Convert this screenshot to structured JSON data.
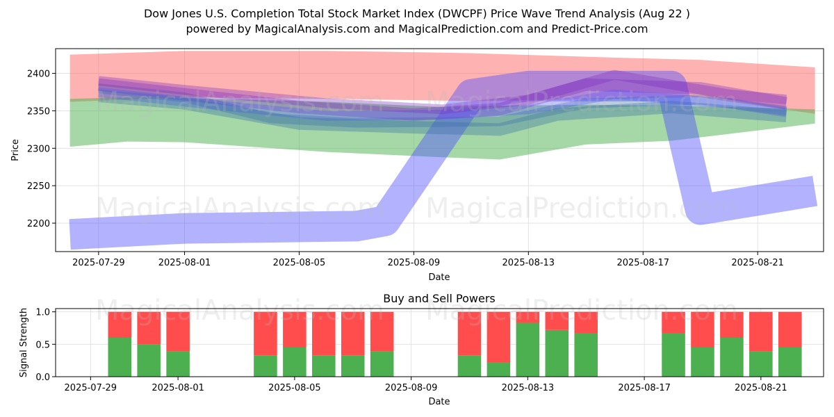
{
  "header": {
    "title": "Dow Jones U.S. Completion Total Stock Market Index (DWCPF) Price Wave Trend Analysis (Aug 22 )",
    "subtitle": "powered by MagicalAnalysis.com and MagicalPrediction.com and Predict-Price.com"
  },
  "watermarks": [
    "MagicalAnalysis.com",
    "MagicalPrediction.com"
  ],
  "colors": {
    "upper_band": "#ff6666",
    "lower_band": "#4caf50",
    "blue_wave": "#5555ff",
    "purple_wave": "#7b2fbf",
    "steel_wave": "#3a6ea5",
    "buy": "#4caf50",
    "sell": "#ff4c4c"
  },
  "chart_data": [
    {
      "type": "area",
      "xlabel": "Date",
      "ylabel": "Price",
      "ylim": [
        2162,
        2433
      ],
      "xlim": [
        "2025-07-27",
        "2025-08-23"
      ],
      "x_ticks": [
        "2025-07-29",
        "2025-08-01",
        "2025-08-05",
        "2025-08-09",
        "2025-08-13",
        "2025-08-17",
        "2025-08-21"
      ],
      "y_ticks": [
        2200,
        2250,
        2300,
        2350,
        2400
      ],
      "grid": true,
      "bands": [
        {
          "color": "#ff6666",
          "x": [
            "2025-07-28",
            "2025-08-01",
            "2025-08-06",
            "2025-08-11",
            "2025-08-16",
            "2025-08-19",
            "2025-08-23"
          ],
          "upper": [
            2425,
            2430,
            2430,
            2427,
            2421,
            2418,
            2408
          ],
          "lower": [
            2362,
            2368,
            2366,
            2363,
            2366,
            2368,
            2346
          ]
        },
        {
          "color": "#4caf50",
          "x": [
            "2025-07-28",
            "2025-07-30",
            "2025-08-01",
            "2025-08-06",
            "2025-08-10",
            "2025-08-12",
            "2025-08-15",
            "2025-08-18",
            "2025-08-23"
          ],
          "upper": [
            2366,
            2368,
            2367,
            2362,
            2355,
            2357,
            2358,
            2357,
            2352
          ],
          "lower": [
            2302,
            2309,
            2308,
            2295,
            2288,
            2285,
            2305,
            2310,
            2333
          ]
        }
      ],
      "waves": [
        {
          "color": "#5555ff",
          "x": [
            "2025-07-28",
            "2025-08-01",
            "2025-08-07",
            "2025-08-08",
            "2025-08-11",
            "2025-08-13",
            "2025-08-18",
            "2025-08-19",
            "2025-08-23"
          ],
          "y": [
            2185,
            2193,
            2196,
            2203,
            2372,
            2383,
            2383,
            2218,
            2243
          ]
        },
        {
          "color": "#3a6ea5",
          "x": [
            "2025-07-29",
            "2025-08-01",
            "2025-08-04",
            "2025-08-07",
            "2025-08-10",
            "2025-08-12",
            "2025-08-15",
            "2025-08-19",
            "2025-08-22"
          ],
          "y": [
            2380,
            2368,
            2340,
            2334,
            2335,
            2336,
            2360,
            2365,
            2350
          ]
        },
        {
          "color": "#7b2fbf",
          "x": [
            "2025-07-29",
            "2025-08-01",
            "2025-08-05",
            "2025-08-09",
            "2025-08-12",
            "2025-08-15",
            "2025-08-19",
            "2025-08-22"
          ],
          "y": [
            2385,
            2372,
            2355,
            2345,
            2352,
            2385,
            2380,
            2360
          ]
        },
        {
          "color": "#5555ff",
          "x": [
            "2025-07-29",
            "2025-08-02",
            "2025-08-06",
            "2025-08-10",
            "2025-08-13",
            "2025-08-16",
            "2025-08-20",
            "2025-08-22"
          ],
          "y": [
            2375,
            2358,
            2343,
            2345,
            2352,
            2372,
            2360,
            2348
          ]
        },
        {
          "color": "#3a6ea5",
          "x": [
            "2025-07-29",
            "2025-08-01",
            "2025-08-05",
            "2025-08-09",
            "2025-08-12",
            "2025-08-14",
            "2025-08-18",
            "2025-08-22"
          ],
          "y": [
            2370,
            2360,
            2333,
            2328,
            2325,
            2345,
            2355,
            2343
          ]
        },
        {
          "color": "#7b2fbf",
          "x": [
            "2025-07-29",
            "2025-08-01",
            "2025-08-06",
            "2025-08-10",
            "2025-08-13",
            "2025-08-16",
            "2025-08-20",
            "2025-08-22"
          ],
          "y": [
            2390,
            2378,
            2360,
            2352,
            2365,
            2398,
            2372,
            2365
          ]
        }
      ]
    },
    {
      "type": "bar",
      "title": "Buy and Sell Powers",
      "xlabel": "Date",
      "ylabel": "Signal Strength",
      "ylim": [
        0,
        1.05
      ],
      "xlim": [
        "2025-07-28",
        "2025-08-23"
      ],
      "x_ticks": [
        "2025-07-29",
        "2025-08-01",
        "2025-08-05",
        "2025-08-09",
        "2025-08-13",
        "2025-08-17",
        "2025-08-21"
      ],
      "y_ticks": [
        "0.0",
        "0.5",
        "1.0"
      ],
      "grid": true,
      "categories": [
        "2025-07-30",
        "2025-07-31",
        "2025-08-01",
        "2025-08-04",
        "2025-08-05",
        "2025-08-06",
        "2025-08-07",
        "2025-08-08",
        "2025-08-11",
        "2025-08-12",
        "2025-08-13",
        "2025-08-14",
        "2025-08-15",
        "2025-08-18",
        "2025-08-19",
        "2025-08-20",
        "2025-08-21",
        "2025-08-22"
      ],
      "series": [
        {
          "name": "Buy",
          "values": [
            0.6,
            0.5,
            0.39,
            0.33,
            0.45,
            0.33,
            0.33,
            0.39,
            0.33,
            0.22,
            0.83,
            0.72,
            0.67,
            0.67,
            0.45,
            0.6,
            0.39,
            0.45
          ]
        },
        {
          "name": "Sell",
          "values": [
            0.4,
            0.5,
            0.61,
            0.67,
            0.55,
            0.67,
            0.67,
            0.61,
            0.67,
            0.78,
            0.17,
            0.28,
            0.33,
            0.33,
            0.55,
            0.4,
            0.61,
            0.55
          ]
        }
      ]
    }
  ]
}
